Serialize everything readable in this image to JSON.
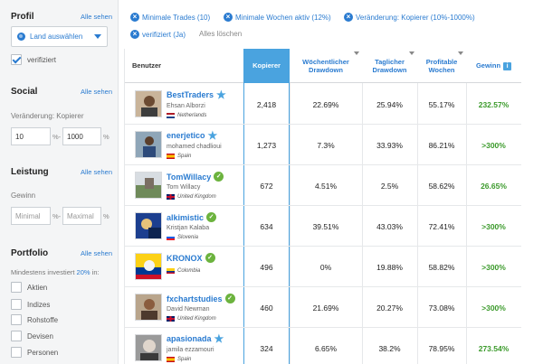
{
  "sidebar": {
    "profil": {
      "title": "Profil",
      "all": "Alle sehen",
      "dropdown": "Land auswählen",
      "verified": "verifiziert"
    },
    "social": {
      "title": "Social",
      "all": "Alle sehen",
      "label": "Veränderung: Kopierer",
      "from": "10",
      "from_unit": "%-",
      "to": "1000",
      "to_unit": "%"
    },
    "leistung": {
      "title": "Leistung",
      "all": "Alle sehen",
      "label": "Gewinn",
      "min_placeholder": "Minimal",
      "min_unit": "%-",
      "max_placeholder": "Maximal",
      "max_unit": "%"
    },
    "portfolio": {
      "title": "Portfolio",
      "all": "Alle sehen",
      "min_text_pre": "Mindestens investiert",
      "min_text_pct": "20%",
      "min_text_post": "in:",
      "items": [
        "Aktien",
        "Indizes",
        "Rohstoffe",
        "Devisen",
        "Personen"
      ]
    }
  },
  "filters": {
    "chips": [
      "Minimale Trades (10)",
      "Minimale Wochen aktiv (12%)",
      "Veränderung: Kopierer (10%-1000%)",
      "verifiziert (Ja)"
    ],
    "clear_all": "Alles löschen"
  },
  "table": {
    "headers": {
      "user": "Benutzer",
      "copiers": "Kopierer",
      "weekly_dd": "Wöchentlicher Drawdown",
      "daily_dd": "Taglicher Drawdown",
      "profitable": "Profitable Wochen",
      "gain": "Gewinn"
    },
    "rows": [
      {
        "username": "BestTraders",
        "badge": "star",
        "realname": "Ehsan Alborzi",
        "country": "Netherlands",
        "flag": "nl",
        "copiers": "2,418",
        "weekly_dd": "22.69%",
        "daily_dd": "25.94%",
        "profitable": "55.17%",
        "gain": "232.57%"
      },
      {
        "username": "enerjetico",
        "badge": "star",
        "realname": "mohamed chadlioui",
        "country": "Spain",
        "flag": "es",
        "copiers": "1,273",
        "weekly_dd": "7.3%",
        "daily_dd": "33.93%",
        "profitable": "86.21%",
        "gain": ">300%"
      },
      {
        "username": "TomWillacy",
        "badge": "check",
        "realname": "Tom Willacy",
        "country": "United Kingdom",
        "flag": "gb",
        "copiers": "672",
        "weekly_dd": "4.51%",
        "daily_dd": "2.5%",
        "profitable": "58.62%",
        "gain": "26.65%"
      },
      {
        "username": "alkimistic",
        "badge": "check",
        "realname": "Kristjan Kalaba",
        "country": "Slovenia",
        "flag": "si",
        "copiers": "634",
        "weekly_dd": "39.51%",
        "daily_dd": "43.03%",
        "profitable": "72.41%",
        "gain": ">300%"
      },
      {
        "username": "KRONOX",
        "badge": "check",
        "realname": "",
        "country": "Colombia",
        "flag": "co",
        "copiers": "496",
        "weekly_dd": "0%",
        "daily_dd": "19.88%",
        "profitable": "58.82%",
        "gain": ">300%"
      },
      {
        "username": "fxchartstudies",
        "badge": "check",
        "realname": "David Newman",
        "country": "United Kingdom",
        "flag": "gb",
        "copiers": "460",
        "weekly_dd": "21.69%",
        "daily_dd": "20.27%",
        "profitable": "73.08%",
        "gain": ">300%"
      },
      {
        "username": "apasionada",
        "badge": "star",
        "realname": "jamila ezzamouri",
        "country": "Spain",
        "flag": "es",
        "copiers": "324",
        "weekly_dd": "6.65%",
        "daily_dd": "38.2%",
        "profitable": "78.95%",
        "gain": "273.54%"
      }
    ]
  },
  "colors": {
    "accent": "#2a7bd0",
    "highlight_column": "#4aa3df",
    "gain_green": "#3b9a2b",
    "verified_green": "#6cb33e"
  }
}
